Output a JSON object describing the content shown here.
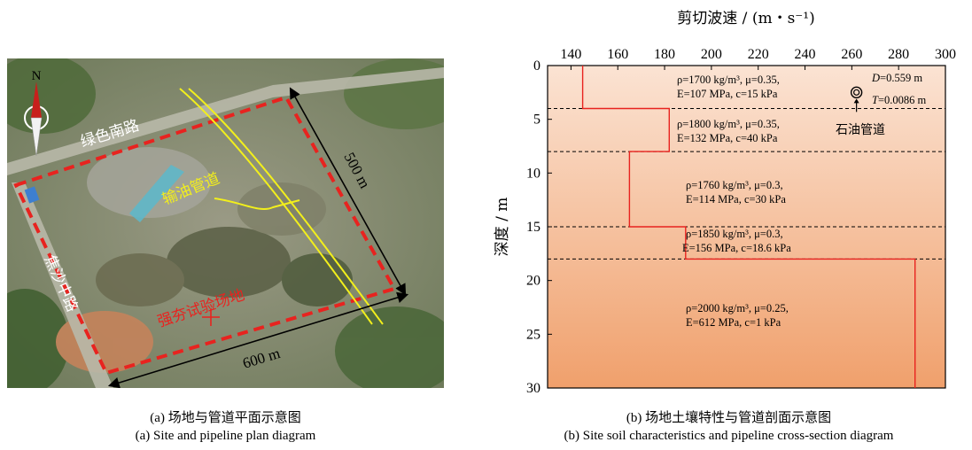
{
  "panel_a": {
    "roads": {
      "green_south_road": "绿色南路",
      "jiaosha_middle_road": "焦沙中路"
    },
    "labels": {
      "oil_pipeline": "输油管道",
      "dynamic_compaction_site": "强夯试验场地",
      "north": "N"
    },
    "dimensions": {
      "width": "600 m",
      "height": "500 m"
    },
    "caption_cn": "(a) 场地与管道平面示意图",
    "caption_en": "(a) Site and pipeline plan diagram",
    "colors": {
      "site_boundary": "#e8231f",
      "pipeline": "#f2ef1c",
      "satellite_base": "#8a8a72"
    }
  },
  "panel_b": {
    "caption_cn": "(b) 场地土壤特性与管道剖面示意图",
    "caption_en": "(b) Site soil characteristics and pipeline cross-section diagram",
    "pipe": {
      "D": "=0.559 m",
      "T": "=0.0086 m",
      "label": "石油管道",
      "D_symbol": "D",
      "T_symbol": "T"
    },
    "layer_texts": [
      {
        "l1": "ρ=1700 kg/m³, μ=0.35,",
        "l2": "E=107 MPa, c=15 kPa"
      },
      {
        "l1": "ρ=1800 kg/m³, μ=0.35,",
        "l2": "E=132 MPa, c=40 kPa"
      },
      {
        "l1": "ρ=1760 kg/m³, μ=0.3,",
        "l2": "E=114 MPa, c=30 kPa"
      },
      {
        "l1": "ρ=1850 kg/m³, μ=0.3,",
        "l2": "E=156 MPa, c=18.6 kPa"
      },
      {
        "l1": "ρ=2000 kg/m³, μ=0.25,",
        "l2": "E=612 MPa, c=1 kPa"
      }
    ],
    "colors": {
      "profile_line": "#e8231f",
      "fill_top": "#fbe3d3",
      "fill_bottom": "#f0a06c"
    }
  },
  "chart_data": {
    "type": "line",
    "xlabel": "剪切波速 / (m・s⁻¹)",
    "ylabel": "深度 / m",
    "xlim": [
      130,
      300
    ],
    "ylim": [
      0,
      30
    ],
    "y_inverted": true,
    "x_axis_position": "top",
    "xticks": [
      140,
      160,
      180,
      200,
      220,
      240,
      260,
      280,
      300
    ],
    "yticks": [
      0,
      5,
      10,
      15,
      20,
      25,
      30
    ],
    "layer_boundaries": [
      4,
      8,
      15,
      18
    ],
    "series": [
      {
        "name": "",
        "x": [
          145,
          145,
          182,
          182,
          165,
          165,
          189,
          189,
          287,
          287
        ],
        "y": [
          0,
          4,
          4,
          8,
          8,
          15,
          15,
          18,
          18,
          30
        ]
      }
    ],
    "pipe_position": {
      "x": 262,
      "y": 2.5
    },
    "grid": false
  }
}
